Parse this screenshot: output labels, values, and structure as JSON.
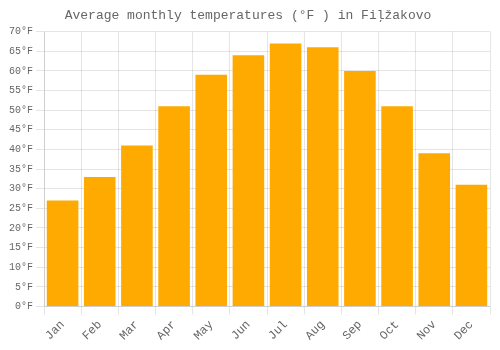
{
  "chart_data": {
    "type": "bar",
    "title": "Average monthly temperatures (°F ) in Fiļžakovo",
    "categories": [
      "Jan",
      "Feb",
      "Mar",
      "Apr",
      "May",
      "Jun",
      "Jul",
      "Aug",
      "Sep",
      "Oct",
      "Nov",
      "Dec"
    ],
    "values": [
      27,
      33,
      41,
      51,
      59,
      64,
      67,
      66,
      60,
      51,
      39,
      31
    ],
    "color": "#FFAA00",
    "ylim": [
      0,
      70
    ],
    "yticks": [
      {
        "value": 0,
        "label": "0°F"
      },
      {
        "value": 5,
        "label": "5°F"
      },
      {
        "value": 10,
        "label": "10°F"
      },
      {
        "value": 15,
        "label": "15°F"
      },
      {
        "value": 20,
        "label": "20°F"
      },
      {
        "value": 25,
        "label": "25°F"
      },
      {
        "value": 30,
        "label": "30°F"
      },
      {
        "value": 35,
        "label": "35°F"
      },
      {
        "value": 40,
        "label": "40°F"
      },
      {
        "value": 45,
        "label": "45°F"
      },
      {
        "value": 50,
        "label": "50°F"
      },
      {
        "value": 55,
        "label": "55°F"
      },
      {
        "value": 60,
        "label": "60°F"
      },
      {
        "value": 65,
        "label": "65°F"
      },
      {
        "value": 70,
        "label": "70°F"
      }
    ],
    "grid": true
  }
}
